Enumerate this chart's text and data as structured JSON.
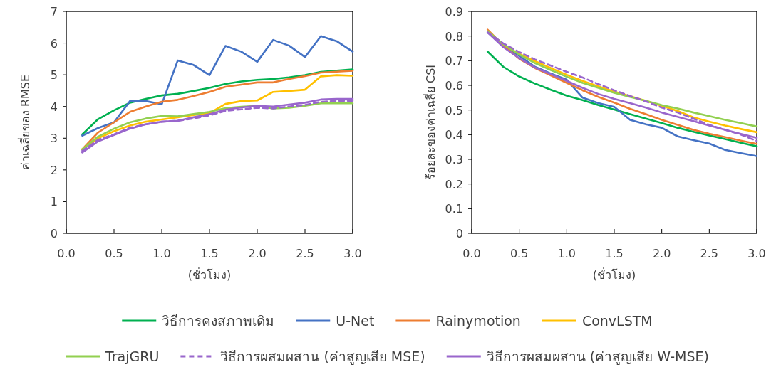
{
  "chart_data": [
    {
      "type": "line",
      "xlabel": "(ชั่วโมง)",
      "ylabel": "ค่าเฉลี่ยของ RMSE",
      "x": [
        0.167,
        0.333,
        0.5,
        0.667,
        0.833,
        1.0,
        1.167,
        1.333,
        1.5,
        1.667,
        1.833,
        2.0,
        2.167,
        2.333,
        2.5,
        2.667,
        2.833,
        3.0
      ],
      "xlim": [
        0,
        3
      ],
      "xticks": [
        {
          "value": 0,
          "label": "0.0"
        },
        {
          "value": 0.5,
          "label": "0.5"
        },
        {
          "value": 1,
          "label": "1.0"
        },
        {
          "value": 1.5,
          "label": "1.5"
        },
        {
          "value": 2,
          "label": "2.0"
        },
        {
          "value": 2.5,
          "label": "2.5"
        },
        {
          "value": 3,
          "label": "3.0"
        }
      ],
      "ylim": [
        0,
        7
      ],
      "yticks": [
        0,
        1,
        2,
        3,
        4,
        5,
        6,
        7
      ],
      "grid": false,
      "legend": "bottom",
      "series": [
        {
          "name": "วิธีการคงสภาพเดิม",
          "color": "#00b050",
          "values": [
            3.12,
            3.6,
            3.88,
            4.12,
            4.24,
            4.35,
            4.4,
            4.49,
            4.59,
            4.71,
            4.79,
            4.84,
            4.87,
            4.92,
            4.99,
            5.09,
            5.13,
            5.17
          ]
        },
        {
          "name": "U-Net",
          "color": "#4472c4",
          "values": [
            3.08,
            3.32,
            3.5,
            4.17,
            4.17,
            4.07,
            5.45,
            5.31,
            4.99,
            5.91,
            5.73,
            5.41,
            6.1,
            5.92,
            5.56,
            6.22,
            6.06,
            5.73
          ]
        },
        {
          "name": "Rainymotion",
          "color": "#ed7d31",
          "values": [
            2.65,
            3.18,
            3.5,
            3.83,
            4.0,
            4.15,
            4.21,
            4.33,
            4.46,
            4.62,
            4.69,
            4.76,
            4.76,
            4.87,
            4.96,
            5.07,
            5.1,
            5.13
          ]
        },
        {
          "name": "ConvLSTM",
          "color": "#ffc000",
          "values": [
            2.65,
            3.0,
            3.22,
            3.4,
            3.52,
            3.59,
            3.66,
            3.73,
            3.79,
            4.08,
            4.17,
            4.19,
            4.46,
            4.49,
            4.53,
            4.95,
            4.99,
            4.97
          ]
        },
        {
          "name": "TrajGRU",
          "color": "#92d050",
          "values": [
            2.65,
            3.05,
            3.3,
            3.5,
            3.62,
            3.7,
            3.69,
            3.76,
            3.83,
            3.95,
            3.99,
            4.02,
            3.94,
            3.96,
            4.02,
            4.1,
            4.1,
            4.1
          ]
        },
        {
          "name": "วิธีการผสมผสาน (ค่าสูญเสีย MSE)",
          "color": "#9966cc",
          "line_style": "dashed",
          "values": [
            2.6,
            2.95,
            3.12,
            3.33,
            3.44,
            3.52,
            3.55,
            3.62,
            3.72,
            3.86,
            3.91,
            3.96,
            3.94,
            4.0,
            4.05,
            4.15,
            4.18,
            4.18
          ]
        },
        {
          "name": "วิธีการผสมผสาน (ค่าสูญเสีย W-MSE)",
          "color": "#9966cc",
          "line_style": "solid",
          "values": [
            2.55,
            2.9,
            3.1,
            3.3,
            3.44,
            3.52,
            3.55,
            3.66,
            3.76,
            3.9,
            3.97,
            4.02,
            4.0,
            4.06,
            4.12,
            4.22,
            4.24,
            4.24
          ]
        }
      ]
    },
    {
      "type": "line",
      "xlabel": "(ชั่วโมง)",
      "ylabel": "ร้อยละของค่าเฉลี่ย CSI",
      "x": [
        0.167,
        0.333,
        0.5,
        0.667,
        0.833,
        1.0,
        1.167,
        1.333,
        1.5,
        1.667,
        1.833,
        2.0,
        2.167,
        2.333,
        2.5,
        2.667,
        2.833,
        3.0
      ],
      "xlim": [
        0,
        3
      ],
      "xticks": [
        {
          "value": 0,
          "label": "0.0"
        },
        {
          "value": 0.5,
          "label": "0.5"
        },
        {
          "value": 1,
          "label": "1.0"
        },
        {
          "value": 1.5,
          "label": "1.5"
        },
        {
          "value": 2,
          "label": "2.0"
        },
        {
          "value": 2.5,
          "label": "2.5"
        },
        {
          "value": 3,
          "label": "3.0"
        }
      ],
      "ylim": [
        0,
        0.9
      ],
      "yticks": [
        0,
        0.1,
        0.2,
        0.3,
        0.4,
        0.5,
        0.6,
        0.7,
        0.8,
        0.9
      ],
      "grid": false,
      "series": [
        {
          "color": "#00b050",
          "values": [
            0.737,
            0.675,
            0.636,
            0.607,
            0.582,
            0.558,
            0.54,
            0.52,
            0.502,
            0.483,
            0.465,
            0.447,
            0.428,
            0.412,
            0.397,
            0.382,
            0.367,
            0.353
          ]
        },
        {
          "color": "#4472c4",
          "values": [
            0.815,
            0.76,
            0.72,
            0.675,
            0.648,
            0.623,
            0.55,
            0.528,
            0.513,
            0.46,
            0.442,
            0.428,
            0.393,
            0.378,
            0.364,
            0.338,
            0.325,
            0.313
          ]
        },
        {
          "color": "#ed7d31",
          "values": [
            0.826,
            0.762,
            0.708,
            0.67,
            0.64,
            0.61,
            0.58,
            0.553,
            0.53,
            0.505,
            0.483,
            0.46,
            0.44,
            0.42,
            0.404,
            0.39,
            0.376,
            0.363
          ]
        },
        {
          "color": "#ffc000",
          "values": [
            0.82,
            0.765,
            0.728,
            0.698,
            0.67,
            0.643,
            0.618,
            0.596,
            0.575,
            0.556,
            0.537,
            0.517,
            0.496,
            0.47,
            0.453,
            0.437,
            0.423,
            0.41
          ]
        },
        {
          "color": "#92d050",
          "values": [
            0.82,
            0.767,
            0.725,
            0.69,
            0.662,
            0.635,
            0.61,
            0.59,
            0.57,
            0.553,
            0.537,
            0.52,
            0.506,
            0.49,
            0.475,
            0.46,
            0.447,
            0.433
          ]
        },
        {
          "color": "#9966cc",
          "line_style": "dashed",
          "values": [
            0.815,
            0.77,
            0.735,
            0.705,
            0.68,
            0.655,
            0.632,
            0.605,
            0.58,
            0.557,
            0.535,
            0.51,
            0.49,
            0.465,
            0.44,
            0.42,
            0.4,
            0.375
          ]
        },
        {
          "color": "#9966cc",
          "line_style": "solid",
          "values": [
            0.815,
            0.755,
            0.71,
            0.672,
            0.645,
            0.618,
            0.59,
            0.565,
            0.545,
            0.528,
            0.51,
            0.49,
            0.472,
            0.455,
            0.437,
            0.42,
            0.403,
            0.387
          ]
        }
      ]
    }
  ]
}
